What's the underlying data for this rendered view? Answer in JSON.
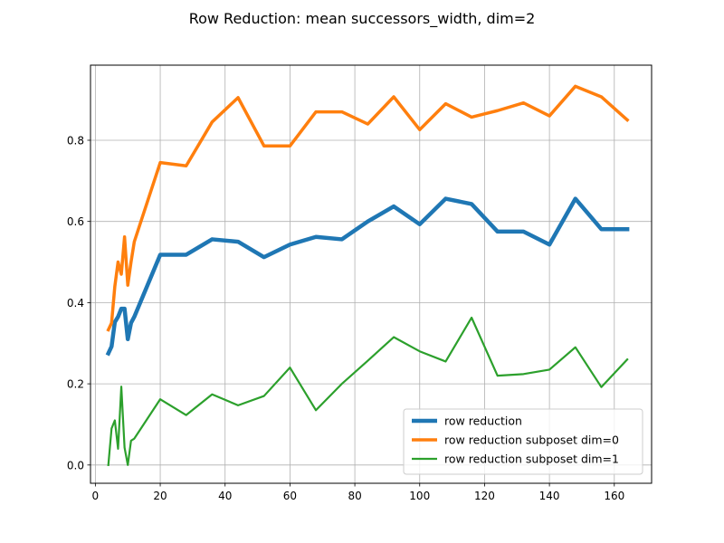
{
  "chart_data": {
    "type": "line",
    "title": "Row Reduction: mean successors_width, dim=2",
    "xlabel": "",
    "ylabel": "",
    "xlim": [
      -1.5,
      171.5
    ],
    "ylim": [
      -0.045,
      0.985
    ],
    "xticks": [
      0,
      20,
      40,
      60,
      80,
      100,
      120,
      140,
      160
    ],
    "yticks": [
      0.0,
      0.2,
      0.4,
      0.6,
      0.8
    ],
    "ytick_labels": [
      "0.0",
      "0.2",
      "0.4",
      "0.6",
      "0.8"
    ],
    "grid": true,
    "legend_position": "lower-right",
    "series": [
      {
        "name": "row reduction",
        "color": "#1f77b4",
        "line_width": 4.5,
        "x": [
          4,
          5,
          6,
          7,
          8,
          9,
          10,
          11,
          12,
          20,
          28,
          36,
          44,
          52,
          60,
          68,
          76,
          84,
          92,
          100,
          108,
          116,
          124,
          132,
          140,
          148,
          156,
          164
        ],
        "y": [
          0.275,
          0.292,
          0.352,
          0.365,
          0.385,
          0.385,
          0.31,
          0.35,
          0.365,
          0.518,
          0.518,
          0.556,
          0.55,
          0.512,
          0.543,
          0.562,
          0.556,
          0.6,
          0.637,
          0.593,
          0.656,
          0.643,
          0.575,
          0.575,
          0.543,
          0.656,
          0.581,
          0.581
        ]
      },
      {
        "name": "row reduction subposet dim=0",
        "color": "#ff7f0e",
        "line_width": 3.5,
        "x": [
          4,
          5,
          6,
          7,
          8,
          9,
          10,
          11,
          12,
          20,
          28,
          36,
          44,
          52,
          60,
          68,
          76,
          84,
          92,
          100,
          108,
          116,
          124,
          132,
          140,
          148,
          156,
          164
        ],
        "y": [
          0.333,
          0.35,
          0.44,
          0.5,
          0.47,
          0.562,
          0.443,
          0.5,
          0.55,
          0.745,
          0.737,
          0.845,
          0.905,
          0.786,
          0.786,
          0.87,
          0.87,
          0.84,
          0.907,
          0.826,
          0.89,
          0.857,
          0.873,
          0.892,
          0.86,
          0.933,
          0.907,
          0.85
        ]
      },
      {
        "name": "row reduction subposet dim=1",
        "color": "#2ca02c",
        "line_width": 2.2,
        "x": [
          4,
          5,
          6,
          7,
          8,
          9,
          10,
          11,
          12,
          20,
          28,
          36,
          44,
          52,
          60,
          68,
          76,
          84,
          92,
          100,
          108,
          116,
          124,
          132,
          140,
          148,
          156,
          164
        ],
        "y": [
          0.0,
          0.09,
          0.11,
          0.04,
          0.193,
          0.043,
          0.0,
          0.06,
          0.065,
          0.162,
          0.123,
          0.174,
          0.147,
          0.17,
          0.24,
          0.135,
          0.2,
          0.257,
          0.315,
          0.28,
          0.255,
          0.363,
          0.22,
          0.224,
          0.235,
          0.29,
          0.192,
          0.26
        ]
      }
    ]
  }
}
